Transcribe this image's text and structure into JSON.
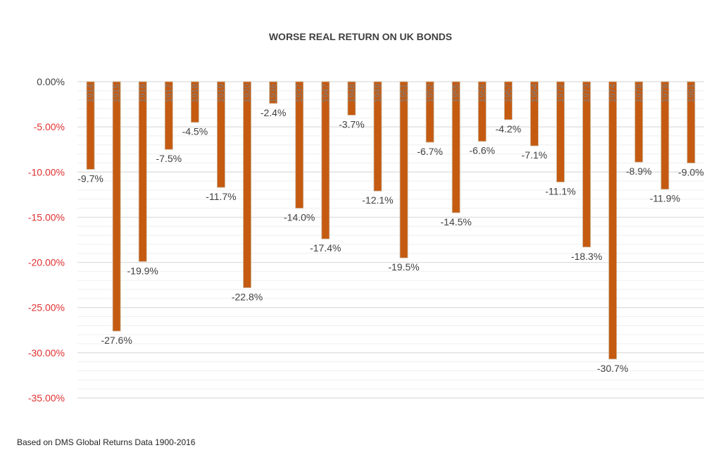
{
  "chart_data": {
    "type": "bar",
    "title": "WORSE REAL RETURN ON UK BONDS",
    "source_note": "Based on DMS Global Returns Data 1900-2016",
    "categories": [
      "1914",
      "1915",
      "1916",
      "1917",
      "1918",
      "1919",
      "1920",
      "1936",
      "1937",
      "1947",
      "1948",
      "1949",
      "1951",
      "1952",
      "1955",
      "1956",
      "1957",
      "1964",
      "1972",
      "1973",
      "1974",
      "1978",
      "1979",
      "1981"
    ],
    "values": [
      -9.7,
      -27.6,
      -19.9,
      -7.5,
      -4.5,
      -11.7,
      -22.8,
      -2.4,
      -14.0,
      -17.4,
      -3.7,
      -12.1,
      -19.5,
      -6.7,
      -14.5,
      -6.6,
      -4.2,
      -7.1,
      -11.1,
      -18.3,
      -30.7,
      -8.9,
      -11.9,
      -9.0
    ],
    "data_labels": [
      "-9.7%",
      "-27.6%",
      "-19.9%",
      "-7.5%",
      "-4.5%",
      "-11.7%",
      "-22.8%",
      "-2.4%",
      "-14.0%",
      "-17.4%",
      "-3.7%",
      "-12.1%",
      "-19.5%",
      "-6.7%",
      "-14.5%",
      "-6.6%",
      "-4.2%",
      "-7.1%",
      "-11.1%",
      "-18.3%",
      "-30.7%",
      "-8.9%",
      "-11.9%",
      "-9.0%"
    ],
    "y_ticks": [
      0,
      -5,
      -10,
      -15,
      -20,
      -25,
      -30,
      -35
    ],
    "y_tick_labels": [
      "0.00%",
      "-5.00%",
      "-10.00%",
      "-15.00%",
      "-20.00%",
      "-25.00%",
      "-30.00%",
      "-35.00%"
    ],
    "ylim": [
      -35,
      0
    ],
    "grid": true,
    "legend": "none",
    "colors": {
      "bar": "#C55A11",
      "bar_edge": "#C9B79C",
      "tick_zero": "#404040",
      "tick_negative": "#E03030",
      "grid": "#DCDCDC",
      "minor_grid": "#EFEFEF"
    }
  }
}
